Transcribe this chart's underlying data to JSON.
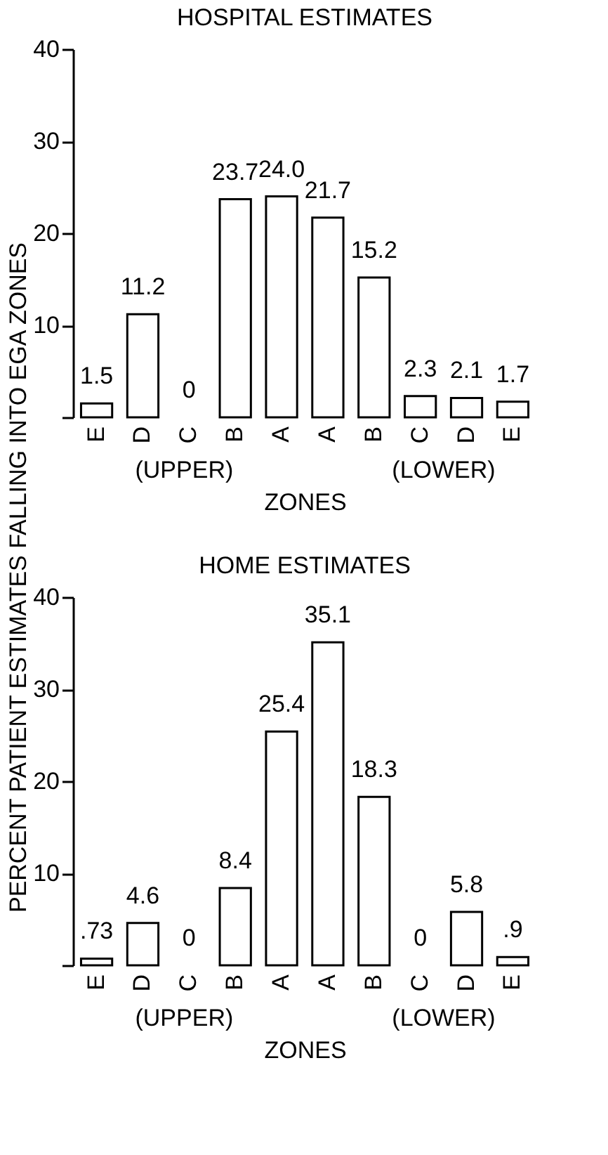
{
  "chart_data": [
    {
      "type": "bar",
      "title": "HOSPITAL ESTIMATES",
      "xlabel": "ZONES",
      "ylabel": "PERCENT PATIENT ESTIMATES FALLING INTO EGA ZONES",
      "categories": [
        "E",
        "D",
        "C",
        "B",
        "A",
        "A",
        "B",
        "C",
        "D",
        "E"
      ],
      "values": [
        1.5,
        11.2,
        0,
        23.7,
        24.0,
        21.7,
        15.2,
        2.3,
        2.1,
        1.7
      ],
      "value_labels": [
        "1.5",
        "11.2",
        "0",
        "23.7",
        "24.0",
        "21.7",
        "15.2",
        "2.3",
        "2.1",
        "1.7"
      ],
      "color": "#ffffff",
      "ylim": [
        0,
        40
      ],
      "yticks": [
        {
          "value": 0,
          "label": null
        },
        10,
        20,
        30,
        40
      ],
      "grid": false,
      "annotations": [
        "(UPPER)",
        "(LOWER)"
      ]
    },
    {
      "type": "bar",
      "title": "HOME ESTIMATES",
      "xlabel": "ZONES",
      "categories": [
        "E",
        "D",
        "C",
        "B",
        "A",
        "A",
        "B",
        "C",
        "D",
        "E"
      ],
      "values": [
        0.73,
        4.6,
        0,
        8.4,
        25.4,
        35.1,
        18.3,
        0,
        5.8,
        0.9
      ],
      "value_labels": [
        ".73",
        "4.6",
        "0",
        "8.4",
        "25.4",
        "35.1",
        "18.3",
        "0",
        "5.8",
        ".9"
      ],
      "color": "#ffffff",
      "ylim": [
        0,
        40
      ],
      "yticks": [
        {
          "value": 0,
          "label": null
        },
        10,
        20,
        30,
        40
      ],
      "grid": false,
      "annotations": [
        "(UPPER)",
        "(LOWER)"
      ]
    }
  ]
}
